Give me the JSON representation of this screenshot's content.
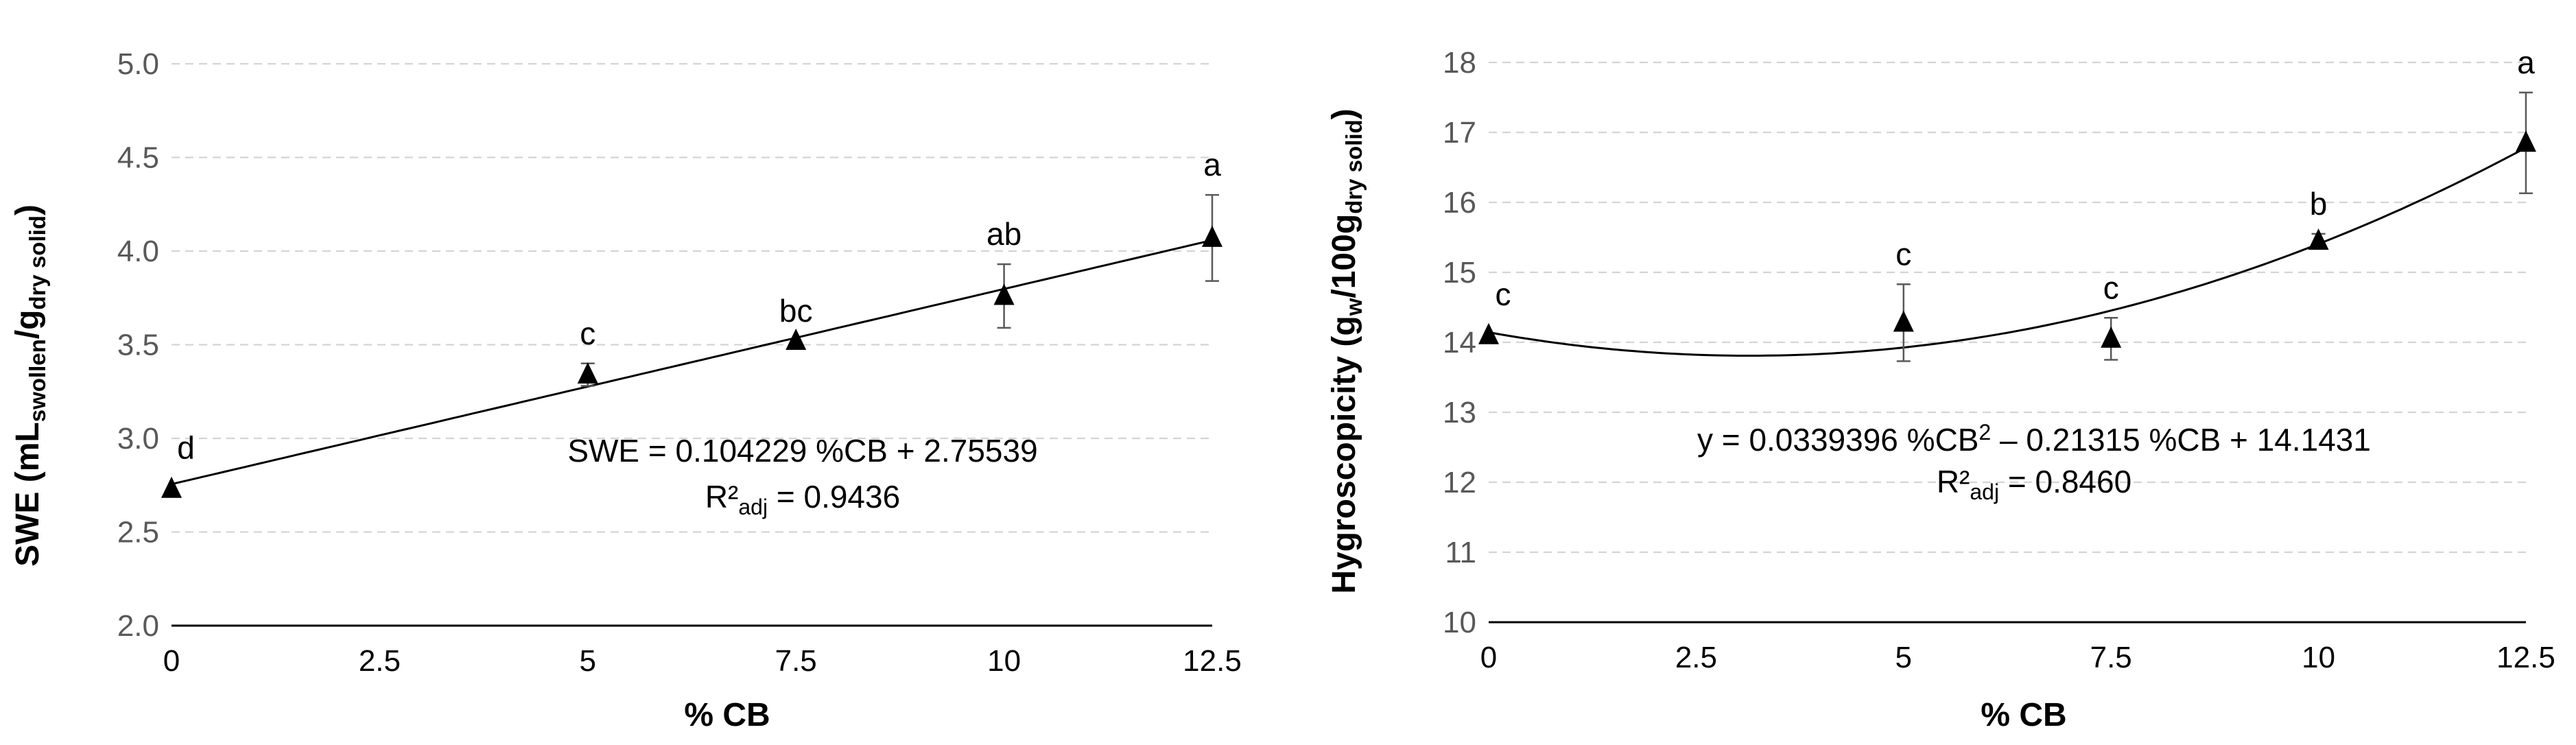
{
  "chart_data": [
    {
      "type": "scatter",
      "title": "",
      "xlabel": "% CB",
      "ylabel": {
        "main": "SWE (mL",
        "sub1": "swollen",
        "mid": "/g",
        "sub2": "dry solid",
        "end": ")"
      },
      "xlim": [
        0,
        12.5
      ],
      "ylim": [
        2.0,
        5.0
      ],
      "x_ticks": [
        "0",
        "2.5",
        "5",
        "7.5",
        "10",
        "12.5"
      ],
      "x_tick_values": [
        0,
        2.5,
        5,
        7.5,
        10,
        12.5
      ],
      "y_ticks": [
        "2.0",
        "2.5",
        "3.0",
        "3.5",
        "4.0",
        "4.5",
        "5.0"
      ],
      "y_tick_values": [
        2.0,
        2.5,
        3.0,
        3.5,
        4.0,
        4.5,
        5.0
      ],
      "grid": "horizontal-dashed",
      "points": [
        {
          "x": 0,
          "y": 2.73,
          "err": 0,
          "letter": "d"
        },
        {
          "x": 5,
          "y": 3.34,
          "err": 0.06,
          "letter": "c"
        },
        {
          "x": 7.5,
          "y": 3.52,
          "err": 0,
          "letter": "bc"
        },
        {
          "x": 10,
          "y": 3.76,
          "err": 0.17,
          "letter": "ab"
        },
        {
          "x": 12.5,
          "y": 4.07,
          "err": 0.23,
          "letter": "a"
        }
      ],
      "fit": {
        "type": "linear",
        "coefficients": [
          2.75539,
          0.104229
        ]
      },
      "equation": {
        "line1": "SWE = 0.104229 %CB + 2.75539",
        "r2_prefix": "R²",
        "r2_sub": "adj",
        "r2_value": " = 0.9436"
      }
    },
    {
      "type": "scatter",
      "title": "",
      "xlabel": "% CB",
      "ylabel": {
        "main": "Hygroscopicity (g",
        "sub1": "w",
        "mid": "/100g",
        "sub2": "dry solid",
        "end": ")"
      },
      "xlim": [
        0,
        12.5
      ],
      "ylim": [
        10,
        18
      ],
      "x_ticks": [
        "0",
        "2.5",
        "5",
        "7.5",
        "10",
        "12.5"
      ],
      "x_tick_values": [
        0,
        2.5,
        5,
        7.5,
        10,
        12.5
      ],
      "y_ticks": [
        "10",
        "11",
        "12",
        "13",
        "14",
        "15",
        "16",
        "17",
        "18"
      ],
      "y_tick_values": [
        10,
        11,
        12,
        13,
        14,
        15,
        16,
        17,
        18
      ],
      "grid": "horizontal-dashed",
      "points": [
        {
          "x": 0,
          "y": 14.1,
          "err": 0,
          "letter": "c"
        },
        {
          "x": 5,
          "y": 14.28,
          "err": 0.55,
          "letter": "c"
        },
        {
          "x": 7.5,
          "y": 14.05,
          "err": 0.3,
          "letter": "c"
        },
        {
          "x": 10,
          "y": 15.45,
          "err": 0.1,
          "letter": "b"
        },
        {
          "x": 12.5,
          "y": 16.85,
          "err": 0.72,
          "letter": "a"
        }
      ],
      "fit": {
        "type": "quadratic",
        "coefficients": [
          14.1431,
          -0.21315,
          0.0339396
        ]
      },
      "equation": {
        "line1_pre": "y = 0.0339396 %CB",
        "line1_sup": "2",
        "line1_post": " – 0.21315 %CB + 14.1431",
        "r2_prefix": "R²",
        "r2_sub": "adj",
        "r2_value": " = 0.8460"
      }
    }
  ]
}
